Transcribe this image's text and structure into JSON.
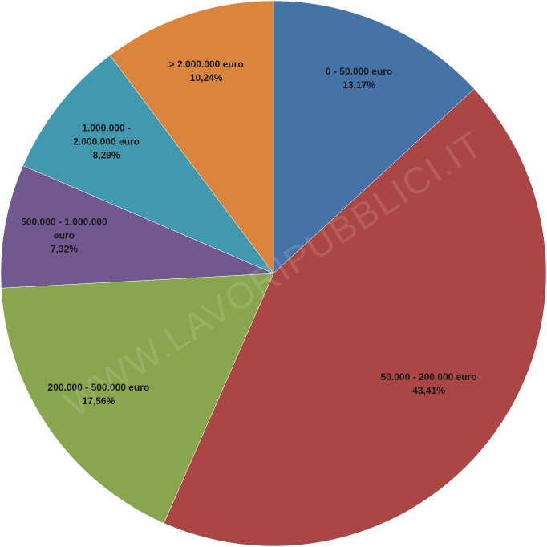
{
  "chart_data": {
    "type": "pie",
    "categories": [
      "0 - 50.000 euro",
      "50.000 - 200.000 euro",
      "200.000 - 500.000 euro",
      "500.000 - 1.000.000 euro",
      "1.000.000 - 2.000.000 euro",
      "> 2.000.000 euro"
    ],
    "values": [
      13.17,
      43.41,
      17.56,
      7.32,
      8.29,
      10.24
    ],
    "value_labels": [
      "13,17%",
      "43,41%",
      "17,56%",
      "7,32%",
      "8,29%",
      "10,24%"
    ],
    "colors": [
      "#4572a7",
      "#aa4643",
      "#89a54e",
      "#71588f",
      "#4198af",
      "#db843d"
    ],
    "watermark": "WWW.LAVORIPUBBLICI.IT"
  }
}
